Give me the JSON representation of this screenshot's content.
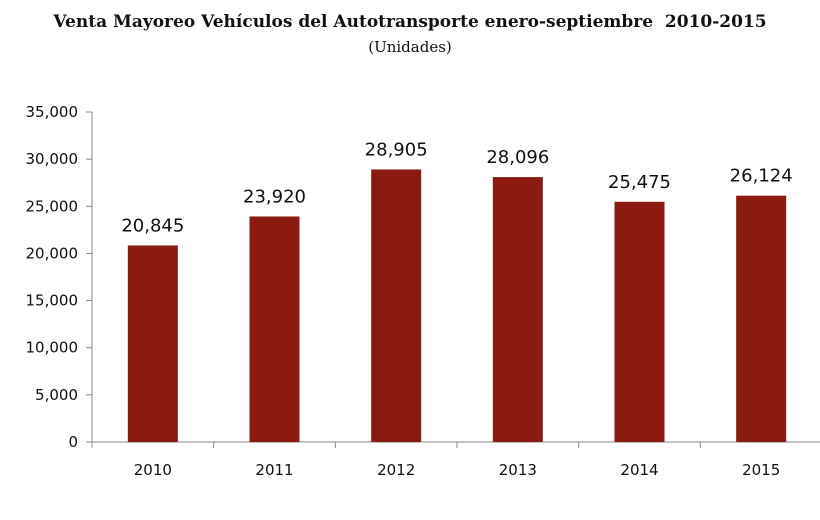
{
  "chart_data": {
    "type": "bar",
    "title": "Venta Mayoreo Vehículos del Autotransporte enero-septiembre  2010-2015",
    "subtitle": "(Unidades)",
    "xlabel": "",
    "ylabel": "",
    "categories": [
      "2010",
      "2011",
      "2012",
      "2013",
      "2014",
      "2015"
    ],
    "values": [
      20845,
      23920,
      28905,
      28096,
      25475,
      26124
    ],
    "value_labels": [
      "20,845",
      "23,920",
      "28,905",
      "28,096",
      "25,475",
      "26,124"
    ],
    "ylim": [
      0,
      35000
    ],
    "yticks": [
      0,
      5000,
      10000,
      15000,
      20000,
      25000,
      30000,
      35000
    ],
    "ytick_labels": [
      "0",
      "5,000",
      "10,000",
      "15,000",
      "20,000",
      "25,000",
      "30,000",
      "35,000"
    ],
    "bar_color": "#8b1a10",
    "grid": false,
    "legend": "none"
  }
}
